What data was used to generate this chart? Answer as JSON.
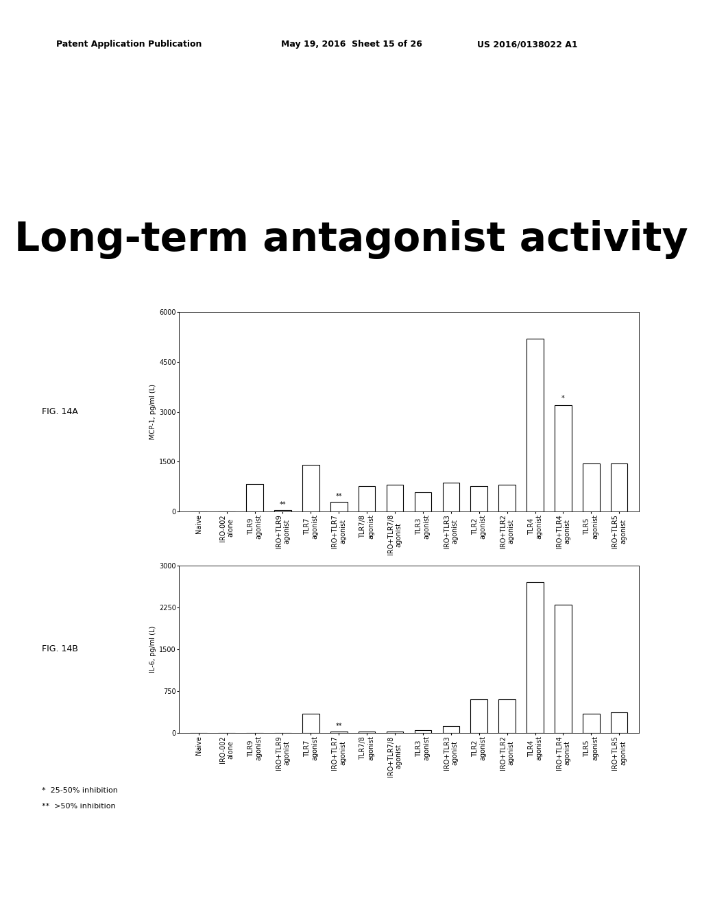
{
  "title": "Long-term antagonist activity",
  "title_fontsize": 42,
  "header_left": "Patent Application Publication",
  "header_date": "May 19, 2016  Sheet 15 of 26",
  "header_right": "US 2016/0138022 A1",
  "fig_label_A": "FIG. 14A",
  "fig_label_B": "FIG. 14B",
  "footnote1": "*  25-50% inhibition",
  "footnote2": "**  >50% inhibition",
  "categories": [
    "Naive",
    "IRO-002\nalone",
    "TLR9\nagonist",
    "IRO+TLR9\nagonist",
    "TLR7\nagonist",
    "IRO+TLR7\nagonist",
    "TLR7/8\nagonist",
    "IRO+TLR7/8\nagonist",
    "TLR3\nagonist",
    "IRO+TLR3\nagonist",
    "TLR2\nagonist",
    "IRO+TLR2\nagonist",
    "TLR4\nagonist",
    "IRO+TLR4\nagonist",
    "TLR5\nagonist",
    "IRO+TLR5\nagonist"
  ],
  "valuesA": [
    0,
    0,
    820,
    30,
    1400,
    280,
    760,
    800,
    580,
    860,
    760,
    800,
    5200,
    3200,
    1450,
    1450
  ],
  "valuesB": [
    0,
    0,
    0,
    0,
    350,
    30,
    30,
    30,
    50,
    130,
    600,
    600,
    2700,
    2300,
    350,
    370
  ],
  "annotationsA": [
    null,
    null,
    null,
    "**",
    null,
    "**",
    null,
    null,
    null,
    null,
    null,
    null,
    null,
    "*",
    null,
    null
  ],
  "annotationsB": [
    null,
    null,
    null,
    null,
    null,
    "**",
    null,
    null,
    null,
    null,
    null,
    null,
    null,
    null,
    null,
    null
  ],
  "ylimA": [
    0,
    6000
  ],
  "ylimB": [
    0,
    3000
  ],
  "yticksA": [
    0,
    1500,
    3000,
    4500,
    6000
  ],
  "yticksB": [
    0,
    750,
    1500,
    2250,
    3000
  ],
  "ylabelA": "MCP-1, pg/ml (L)",
  "ylabelB": "IL-6, pg/ml (L)",
  "bar_color": "white",
  "bar_edgecolor": "black",
  "bar_linewidth": 0.8,
  "background_color": "white",
  "tick_fontsize": 7,
  "label_fontsize": 7,
  "annotation_fontsize": 7
}
